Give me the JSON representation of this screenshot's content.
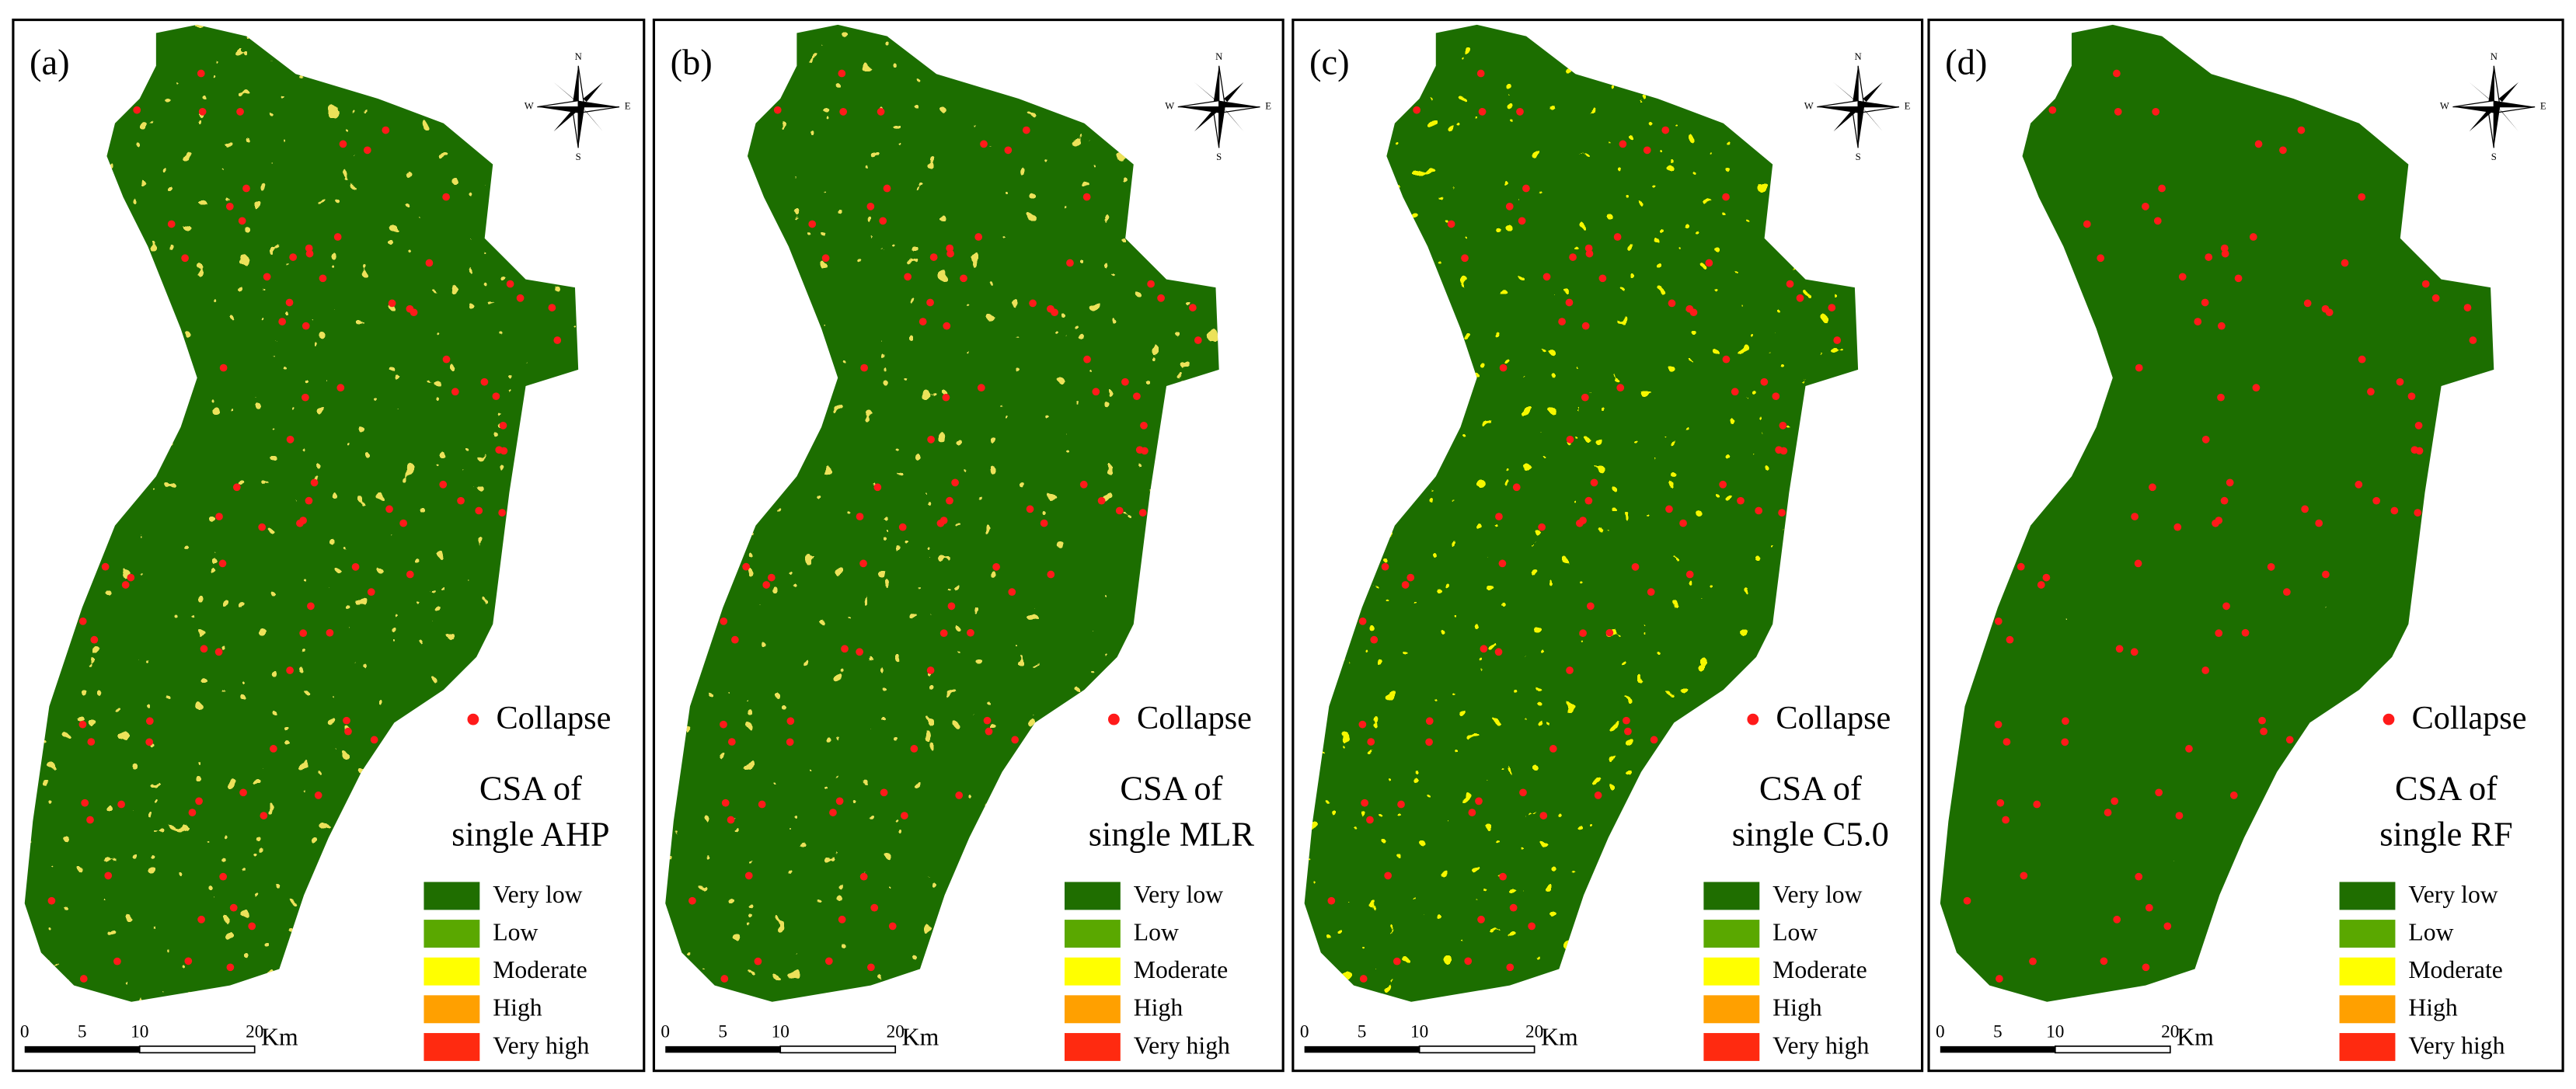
{
  "panels": [
    {
      "label": "(a)",
      "title_lines": [
        "CSA of",
        "single AHP"
      ],
      "noise_color": "#d6c21a"
    },
    {
      "label": "(b)",
      "title_lines": [
        "CSA of",
        "single MLR"
      ],
      "noise_color": "#d6c21a"
    },
    {
      "label": "(c)",
      "title_lines": [
        "CSA of",
        "single C5.0"
      ],
      "noise_color": "#e8f000"
    },
    {
      "label": "(d)",
      "title_lines": [
        "CSA of",
        "single RF"
      ],
      "noise_color": "#b7c41a"
    }
  ],
  "legend": {
    "collapse": "Collapse",
    "collapse_color": "#ff1a1a",
    "classes": [
      {
        "name": "Very low",
        "color": "#1f6e00"
      },
      {
        "name": "Low",
        "color": "#5aa800"
      },
      {
        "name": "Moderate",
        "color": "#ffff00"
      },
      {
        "name": "High",
        "color": "#ffa000"
      },
      {
        "name": "Very high",
        "color": "#ff2a10"
      }
    ]
  },
  "scale_bar": {
    "ticks": [
      "0",
      "5",
      "10",
      "20"
    ],
    "unit": "Km"
  },
  "compass": {
    "n": "N",
    "s": "S",
    "w": "W",
    "e": "E"
  }
}
